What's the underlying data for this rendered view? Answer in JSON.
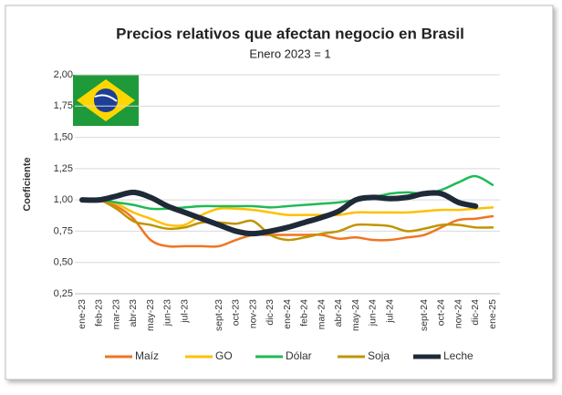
{
  "chart_data": {
    "type": "line",
    "title": "Precios relativos que afectan negocio en Brasil",
    "subtitle": "Enero 2023 = 1",
    "y_label": "Coeficiente",
    "categories": [
      "ene-23",
      "feb-23",
      "mar-23",
      "abr-23",
      "may-23",
      "jun-23",
      "jul-23",
      null,
      "sept-23",
      "oct-23",
      "nov-23",
      "dic-23",
      "ene-24",
      "feb-24",
      "mar-24",
      "abr-24",
      "may-24",
      "jun-24",
      "jul-24",
      null,
      "sept-24",
      "oct-24",
      "nov-24",
      "dic-24",
      "ene-25"
    ],
    "series": [
      {
        "name": "Maíz",
        "color": "#f07520",
        "width": 2.5,
        "values": [
          1.0,
          1.0,
          0.95,
          0.85,
          0.68,
          0.63,
          0.63,
          0.63,
          0.63,
          0.68,
          0.72,
          0.72,
          0.72,
          0.72,
          0.72,
          0.69,
          0.7,
          0.68,
          0.68,
          0.7,
          0.72,
          0.78,
          0.84,
          0.85,
          0.87
        ]
      },
      {
        "name": "GO",
        "color": "#ffc000",
        "width": 2.5,
        "values": [
          1.0,
          1.0,
          0.97,
          0.9,
          0.85,
          0.8,
          0.8,
          0.88,
          0.93,
          0.93,
          0.92,
          0.9,
          0.88,
          0.88,
          0.88,
          0.88,
          0.9,
          0.9,
          0.9,
          0.9,
          0.91,
          0.92,
          0.92,
          0.93,
          0.94
        ]
      },
      {
        "name": "Dólar",
        "color": "#1fba55",
        "width": 2.5,
        "values": [
          1.0,
          1.0,
          0.98,
          0.96,
          0.93,
          0.93,
          0.94,
          0.95,
          0.95,
          0.95,
          0.95,
          0.94,
          0.95,
          0.96,
          0.97,
          0.98,
          1.0,
          1.02,
          1.05,
          1.06,
          1.05,
          1.08,
          1.14,
          1.19,
          1.12
        ]
      },
      {
        "name": "Soja",
        "color": "#c09400",
        "width": 2.5,
        "values": [
          1.0,
          1.0,
          0.93,
          0.83,
          0.8,
          0.77,
          0.78,
          0.82,
          0.82,
          0.81,
          0.83,
          0.72,
          0.68,
          0.7,
          0.73,
          0.75,
          0.8,
          0.8,
          0.79,
          0.75,
          0.77,
          0.8,
          0.8,
          0.78,
          0.78
        ]
      },
      {
        "name": "Leche",
        "color": "#1f2a38",
        "width": 6,
        "values": [
          1.0,
          1.0,
          1.03,
          1.06,
          1.02,
          0.95,
          0.9,
          0.85,
          0.8,
          0.75,
          0.73,
          0.75,
          0.78,
          0.82,
          0.86,
          0.91,
          1.0,
          1.02,
          1.01,
          1.02,
          1.05,
          1.05,
          0.98,
          0.95,
          null
        ]
      }
    ],
    "ylim": [
      0.25,
      2.0
    ],
    "yticks": [
      {
        "value": 0.25,
        "label": "0,25"
      },
      {
        "value": 0.5,
        "label": "0,50"
      },
      {
        "value": 0.75,
        "label": "0,75"
      },
      {
        "value": 1.0,
        "label": "1,00"
      },
      {
        "value": 1.25,
        "label": "1,25"
      },
      {
        "value": 1.5,
        "label": "1,50"
      },
      {
        "value": 1.75,
        "label": "1,75"
      },
      {
        "value": 2.0,
        "label": "2,00"
      }
    ],
    "grid": true,
    "legend": "bottom"
  }
}
